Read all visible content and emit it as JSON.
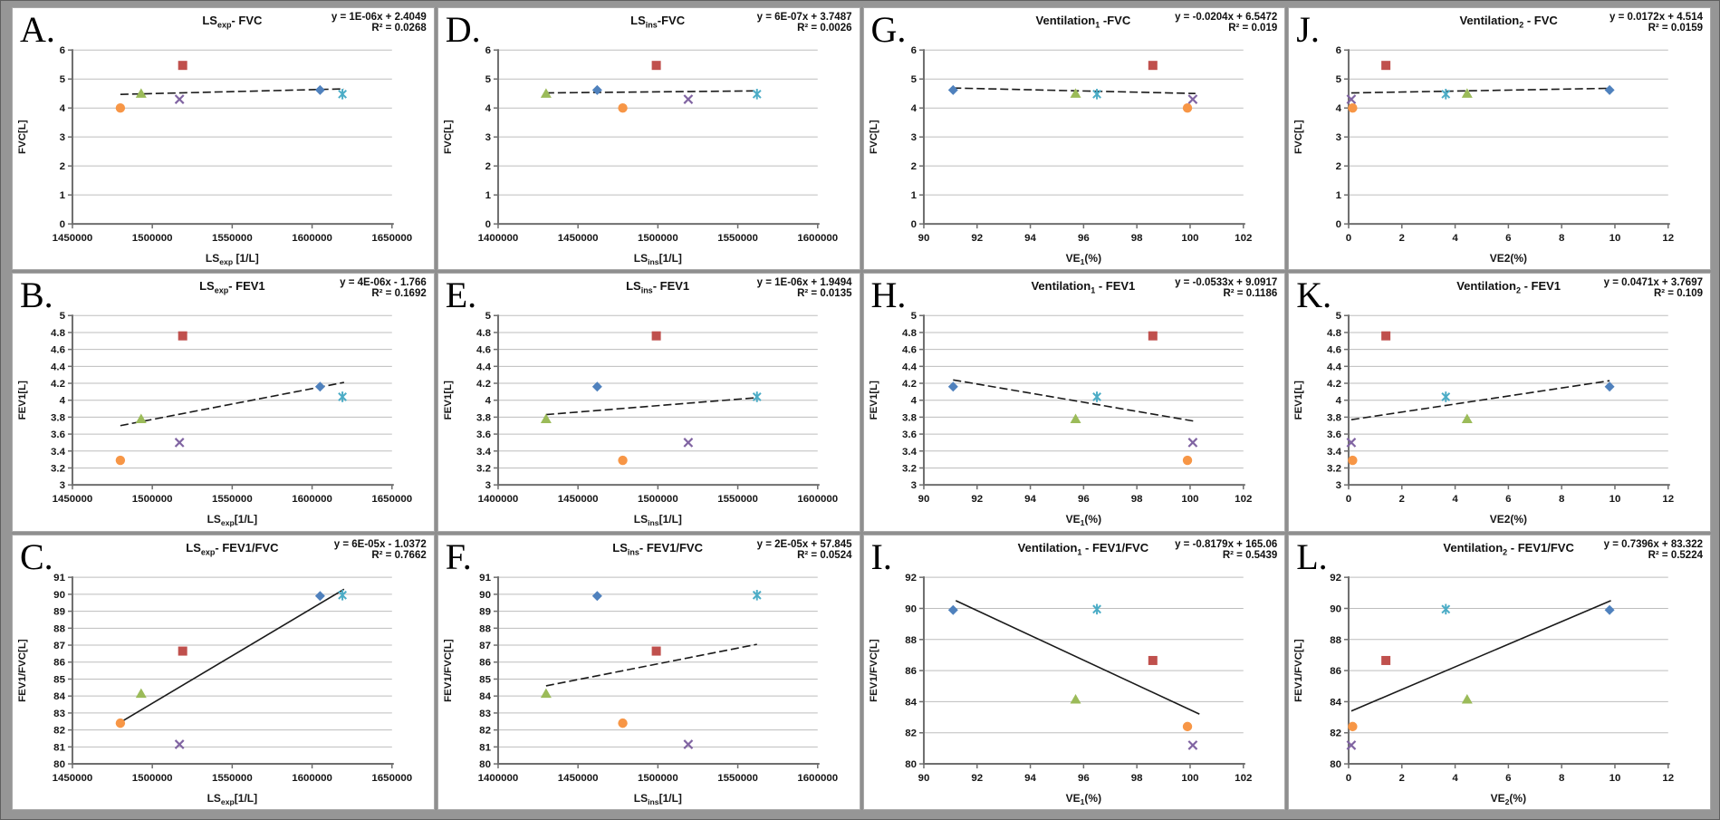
{
  "colors": {
    "gridline": "#bdbdbd",
    "axis": "#6e6e6e",
    "trendline": "#1a1a1a",
    "panel_background": "#ffffff",
    "frame_background": "#969696"
  },
  "series_styles": {
    "diamond": {
      "shape": "diamond",
      "color": "#4F81BD"
    },
    "square": {
      "shape": "square",
      "color": "#C0504D"
    },
    "triangle": {
      "shape": "triangle",
      "color": "#9BBB59"
    },
    "x": {
      "shape": "x",
      "color": "#8064A2"
    },
    "asterisk": {
      "shape": "asterisk",
      "color": "#4BACC6"
    },
    "circle": {
      "shape": "circle",
      "color": "#F79646"
    }
  },
  "chart_data": [
    {
      "panel_label": "A.",
      "type": "scatter",
      "title": "LS~exp~- FVC",
      "equation": "y = 1E-06x + 2.4049",
      "r_squared": "R² = 0.0268",
      "xlabel": "LS~exp~ [1/L]",
      "ylabel": "FVC[L]",
      "xlim": [
        1450000,
        1650000
      ],
      "ylim": [
        0,
        6
      ],
      "xticks": [
        1450000,
        1500000,
        1550000,
        1600000,
        1650000
      ],
      "yticks": [
        0,
        1,
        2,
        3,
        4,
        5,
        6
      ],
      "points": [
        {
          "series": "diamond",
          "x": 1605000,
          "y": 4.62
        },
        {
          "series": "square",
          "x": 1519000,
          "y": 5.47
        },
        {
          "series": "triangle",
          "x": 1493000,
          "y": 4.5
        },
        {
          "series": "x",
          "x": 1517000,
          "y": 4.3
        },
        {
          "series": "asterisk",
          "x": 1619000,
          "y": 4.48
        },
        {
          "series": "circle",
          "x": 1480000,
          "y": 4.0
        }
      ],
      "trend": {
        "x1": 1480000,
        "y1": 4.47,
        "x2": 1620000,
        "y2": 4.66,
        "style": "dashed"
      }
    },
    {
      "panel_label": "B.",
      "type": "scatter",
      "title": "LS~exp~- FEV1",
      "equation": "y = 4E-06x - 1.766",
      "r_squared": "R² = 0.1692",
      "xlabel": "LS~exp~[1/L]",
      "ylabel": "FEV1[L]",
      "xlim": [
        1450000,
        1650000
      ],
      "ylim": [
        3,
        5
      ],
      "xticks": [
        1450000,
        1500000,
        1550000,
        1600000,
        1650000
      ],
      "yticks": [
        3,
        3.2,
        3.4,
        3.6,
        3.8,
        4,
        4.2,
        4.4,
        4.6,
        4.8,
        5
      ],
      "points": [
        {
          "series": "diamond",
          "x": 1605000,
          "y": 4.16
        },
        {
          "series": "square",
          "x": 1519000,
          "y": 4.76
        },
        {
          "series": "triangle",
          "x": 1493000,
          "y": 3.78
        },
        {
          "series": "x",
          "x": 1517000,
          "y": 3.5
        },
        {
          "series": "asterisk",
          "x": 1619000,
          "y": 4.04
        },
        {
          "series": "circle",
          "x": 1480000,
          "y": 3.29
        }
      ],
      "trend": {
        "x1": 1480000,
        "y1": 3.7,
        "x2": 1620000,
        "y2": 4.21,
        "style": "dashed"
      }
    },
    {
      "panel_label": "C.",
      "type": "scatter",
      "title": "LS~exp~- FEV1/FVC",
      "equation": "y = 6E-05x - 1.0372",
      "r_squared": "R² = 0.7662",
      "xlabel": "LS~exp~[1/L]",
      "ylabel": "FEV1/FVC[L]",
      "xlim": [
        1450000,
        1650000
      ],
      "ylim": [
        80,
        91
      ],
      "xticks": [
        1450000,
        1500000,
        1550000,
        1600000,
        1650000
      ],
      "yticks": [
        80,
        81,
        82,
        83,
        84,
        85,
        86,
        87,
        88,
        89,
        90,
        91
      ],
      "points": [
        {
          "series": "diamond",
          "x": 1605000,
          "y": 89.9
        },
        {
          "series": "square",
          "x": 1519000,
          "y": 86.65
        },
        {
          "series": "triangle",
          "x": 1493000,
          "y": 84.15
        },
        {
          "series": "x",
          "x": 1517000,
          "y": 81.15
        },
        {
          "series": "asterisk",
          "x": 1619000,
          "y": 89.95
        },
        {
          "series": "circle",
          "x": 1480000,
          "y": 82.4
        }
      ],
      "trend": {
        "x1": 1480000,
        "y1": 82.45,
        "x2": 1620000,
        "y2": 90.3,
        "style": "solid"
      }
    },
    {
      "panel_label": "D.",
      "type": "scatter",
      "title": "LS~ins~-FVC",
      "equation": "y = 6E-07x + 3.7487",
      "r_squared": "R² = 0.0026",
      "xlabel": "LS~ins~[1/L]",
      "ylabel": "FVC[L]",
      "xlim": [
        1400000,
        1600000
      ],
      "ylim": [
        0,
        6
      ],
      "xticks": [
        1400000,
        1450000,
        1500000,
        1550000,
        1600000
      ],
      "yticks": [
        0,
        1,
        2,
        3,
        4,
        5,
        6
      ],
      "points": [
        {
          "series": "diamond",
          "x": 1462000,
          "y": 4.62
        },
        {
          "series": "square",
          "x": 1499000,
          "y": 5.47
        },
        {
          "series": "triangle",
          "x": 1430000,
          "y": 4.5
        },
        {
          "series": "x",
          "x": 1519000,
          "y": 4.3
        },
        {
          "series": "asterisk",
          "x": 1562000,
          "y": 4.48
        },
        {
          "series": "circle",
          "x": 1478000,
          "y": 4.0
        }
      ],
      "trend": {
        "x1": 1430000,
        "y1": 4.52,
        "x2": 1562000,
        "y2": 4.59,
        "style": "dashed"
      }
    },
    {
      "panel_label": "E.",
      "type": "scatter",
      "title": "LS~ins~- FEV1",
      "equation": "y = 1E-06x + 1.9494",
      "r_squared": "R² = 0.0135",
      "xlabel": "LS~ins~[1/L]",
      "ylabel": "FEV1[L]",
      "xlim": [
        1400000,
        1600000
      ],
      "ylim": [
        3,
        5
      ],
      "xticks": [
        1400000,
        1450000,
        1500000,
        1550000,
        1600000
      ],
      "yticks": [
        3,
        3.2,
        3.4,
        3.6,
        3.8,
        4,
        4.2,
        4.4,
        4.6,
        4.8,
        5
      ],
      "points": [
        {
          "series": "diamond",
          "x": 1462000,
          "y": 4.16
        },
        {
          "series": "square",
          "x": 1499000,
          "y": 4.76
        },
        {
          "series": "triangle",
          "x": 1430000,
          "y": 3.78
        },
        {
          "series": "x",
          "x": 1519000,
          "y": 3.5
        },
        {
          "series": "asterisk",
          "x": 1562000,
          "y": 4.04
        },
        {
          "series": "circle",
          "x": 1478000,
          "y": 3.29
        }
      ],
      "trend": {
        "x1": 1430000,
        "y1": 3.83,
        "x2": 1562000,
        "y2": 4.03,
        "style": "dashed"
      }
    },
    {
      "panel_label": "F.",
      "type": "scatter",
      "title": "LS~ins~- FEV1/FVC",
      "equation": "y = 2E-05x + 57.845",
      "r_squared": "R² = 0.0524",
      "xlabel": "LS~ins~[1/L]",
      "ylabel": "FEV1/FVC[L]",
      "xlim": [
        1400000,
        1600000
      ],
      "ylim": [
        80,
        91
      ],
      "xticks": [
        1400000,
        1450000,
        1500000,
        1550000,
        1600000
      ],
      "yticks": [
        80,
        81,
        82,
        83,
        84,
        85,
        86,
        87,
        88,
        89,
        90,
        91
      ],
      "points": [
        {
          "series": "diamond",
          "x": 1462000,
          "y": 89.9
        },
        {
          "series": "square",
          "x": 1499000,
          "y": 86.65
        },
        {
          "series": "triangle",
          "x": 1430000,
          "y": 84.15
        },
        {
          "series": "x",
          "x": 1519000,
          "y": 81.15
        },
        {
          "series": "asterisk",
          "x": 1562000,
          "y": 89.95
        },
        {
          "series": "circle",
          "x": 1478000,
          "y": 82.4
        }
      ],
      "trend": {
        "x1": 1430000,
        "y1": 84.6,
        "x2": 1562000,
        "y2": 87.05,
        "style": "dashed"
      }
    },
    {
      "panel_label": "G.",
      "type": "scatter",
      "title": "Ventilation~1~ -FVC",
      "equation": "y = -0.0204x + 6.5472",
      "r_squared": "R² = 0.019",
      "xlabel": "VE~1~(%)",
      "ylabel": "FVC[L]",
      "xlim": [
        90,
        102
      ],
      "ylim": [
        0,
        6
      ],
      "xticks": [
        90,
        92,
        94,
        96,
        98,
        100,
        102
      ],
      "yticks": [
        0,
        1,
        2,
        3,
        4,
        5,
        6
      ],
      "points": [
        {
          "series": "diamond",
          "x": 91.1,
          "y": 4.62
        },
        {
          "series": "square",
          "x": 98.6,
          "y": 5.47
        },
        {
          "series": "triangle",
          "x": 95.7,
          "y": 4.5
        },
        {
          "series": "x",
          "x": 100.1,
          "y": 4.3
        },
        {
          "series": "asterisk",
          "x": 96.5,
          "y": 4.48
        },
        {
          "series": "circle",
          "x": 99.9,
          "y": 4.0
        }
      ],
      "trend": {
        "x1": 91.1,
        "y1": 4.69,
        "x2": 100.2,
        "y2": 4.5,
        "style": "dashed"
      }
    },
    {
      "panel_label": "H.",
      "type": "scatter",
      "title": "Ventilation~1~ - FEV1",
      "equation": "y = -0.0533x + 9.0917",
      "r_squared": "R² = 0.1186",
      "xlabel": "VE~1~(%)",
      "ylabel": "FEV1[L]",
      "xlim": [
        90,
        102
      ],
      "ylim": [
        3,
        5
      ],
      "xticks": [
        90,
        92,
        94,
        96,
        98,
        100,
        102
      ],
      "yticks": [
        3,
        3.2,
        3.4,
        3.6,
        3.8,
        4,
        4.2,
        4.4,
        4.6,
        4.8,
        5
      ],
      "points": [
        {
          "series": "diamond",
          "x": 91.1,
          "y": 4.16
        },
        {
          "series": "square",
          "x": 98.6,
          "y": 4.76
        },
        {
          "series": "triangle",
          "x": 95.7,
          "y": 3.78
        },
        {
          "series": "x",
          "x": 100.1,
          "y": 3.5
        },
        {
          "series": "asterisk",
          "x": 96.5,
          "y": 4.04
        },
        {
          "series": "circle",
          "x": 99.9,
          "y": 3.29
        }
      ],
      "trend": {
        "x1": 91.1,
        "y1": 4.24,
        "x2": 100.2,
        "y2": 3.75,
        "style": "dashed"
      }
    },
    {
      "panel_label": "I.",
      "type": "scatter",
      "title": "Ventilation~1~ - FEV1/FVC",
      "equation": "y = -0.8179x + 165.06",
      "r_squared": "R² = 0.5439",
      "xlabel": "VE~1~(%)",
      "ylabel": "FEV1/FVC[L]",
      "xlim": [
        90,
        102
      ],
      "ylim": [
        80,
        92
      ],
      "xticks": [
        90,
        92,
        94,
        96,
        98,
        100,
        102
      ],
      "yticks": [
        80,
        82,
        84,
        86,
        88,
        90,
        92
      ],
      "points": [
        {
          "series": "diamond",
          "x": 91.1,
          "y": 89.9
        },
        {
          "series": "square",
          "x": 98.6,
          "y": 86.65
        },
        {
          "series": "triangle",
          "x": 95.7,
          "y": 84.15
        },
        {
          "series": "x",
          "x": 100.1,
          "y": 81.2
        },
        {
          "series": "asterisk",
          "x": 96.5,
          "y": 89.95
        },
        {
          "series": "circle",
          "x": 99.9,
          "y": 82.4
        }
      ],
      "trend": {
        "x1": 91.2,
        "y1": 90.5,
        "x2": 100.35,
        "y2": 83.2,
        "style": "solid"
      }
    },
    {
      "panel_label": "J.",
      "type": "scatter",
      "title": "Ventilation~2~ - FVC",
      "equation": "y = 0.0172x + 4.514",
      "r_squared": "R² = 0.0159",
      "xlabel": "VE2(%)",
      "ylabel": "FVC[L]",
      "xlim": [
        0,
        12
      ],
      "ylim": [
        0,
        6
      ],
      "xticks": [
        0,
        2,
        4,
        6,
        8,
        10,
        12
      ],
      "yticks": [
        0,
        1,
        2,
        3,
        4,
        5,
        6
      ],
      "points": [
        {
          "series": "diamond",
          "x": 9.8,
          "y": 4.62
        },
        {
          "series": "square",
          "x": 1.4,
          "y": 5.47
        },
        {
          "series": "triangle",
          "x": 4.45,
          "y": 4.5
        },
        {
          "series": "x",
          "x": 0.1,
          "y": 4.3
        },
        {
          "series": "asterisk",
          "x": 3.65,
          "y": 4.48
        },
        {
          "series": "circle",
          "x": 0.15,
          "y": 4.0
        }
      ],
      "trend": {
        "x1": 0.1,
        "y1": 4.52,
        "x2": 9.8,
        "y2": 4.68,
        "style": "dashed"
      }
    },
    {
      "panel_label": "K.",
      "type": "scatter",
      "title": "Ventilation~2~ - FEV1",
      "equation": "y = 0.0471x + 3.7697",
      "r_squared": "R² = 0.109",
      "xlabel": "VE2(%)",
      "ylabel": "FEV1[L]",
      "xlim": [
        0,
        12
      ],
      "ylim": [
        3,
        5
      ],
      "xticks": [
        0,
        2,
        4,
        6,
        8,
        10,
        12
      ],
      "yticks": [
        3,
        3.2,
        3.4,
        3.6,
        3.8,
        4,
        4.2,
        4.4,
        4.6,
        4.8,
        5
      ],
      "points": [
        {
          "series": "diamond",
          "x": 9.8,
          "y": 4.16
        },
        {
          "series": "square",
          "x": 1.4,
          "y": 4.76
        },
        {
          "series": "triangle",
          "x": 4.45,
          "y": 3.78
        },
        {
          "series": "x",
          "x": 0.1,
          "y": 3.5
        },
        {
          "series": "asterisk",
          "x": 3.65,
          "y": 4.04
        },
        {
          "series": "circle",
          "x": 0.15,
          "y": 3.29
        }
      ],
      "trend": {
        "x1": 0.1,
        "y1": 3.77,
        "x2": 9.8,
        "y2": 4.23,
        "style": "dashed"
      }
    },
    {
      "panel_label": "L.",
      "type": "scatter",
      "title": "Ventilation~2~ - FEV1/FVC",
      "equation": "y = 0.7396x + 83.322",
      "r_squared": "R² = 0.5224",
      "xlabel": "VE~2~(%)",
      "ylabel": "FEV1/FVC[L]",
      "xlim": [
        0,
        12
      ],
      "ylim": [
        80,
        92
      ],
      "xticks": [
        0,
        2,
        4,
        6,
        8,
        10,
        12
      ],
      "yticks": [
        80,
        82,
        84,
        86,
        88,
        90,
        92
      ],
      "points": [
        {
          "series": "diamond",
          "x": 9.8,
          "y": 89.9
        },
        {
          "series": "square",
          "x": 1.4,
          "y": 86.65
        },
        {
          "series": "triangle",
          "x": 4.45,
          "y": 84.15
        },
        {
          "series": "x",
          "x": 0.1,
          "y": 81.2
        },
        {
          "series": "asterisk",
          "x": 3.65,
          "y": 89.95
        },
        {
          "series": "circle",
          "x": 0.15,
          "y": 82.4
        }
      ],
      "trend": {
        "x1": 0.1,
        "y1": 83.4,
        "x2": 9.85,
        "y2": 90.5,
        "style": "solid"
      }
    }
  ]
}
